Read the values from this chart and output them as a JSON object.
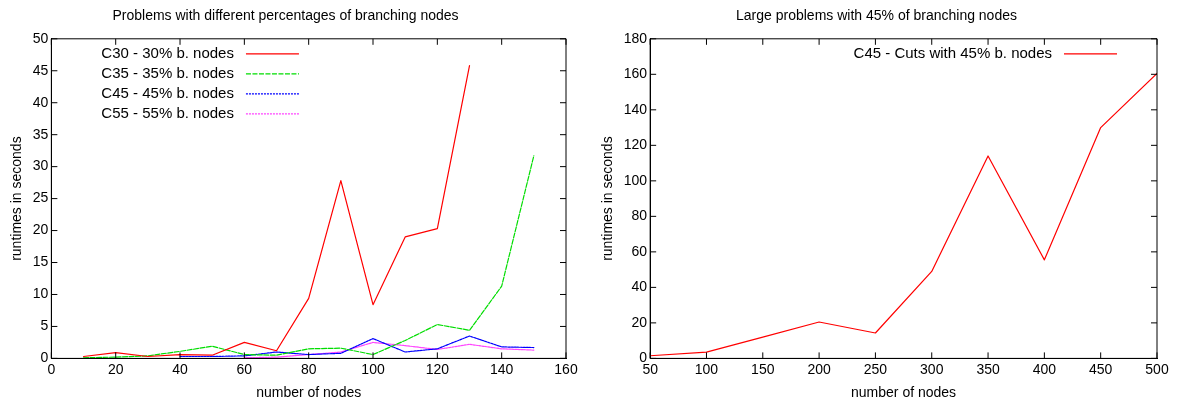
{
  "chart_data": [
    {
      "type": "line",
      "title": "Problems with different percentages of branching nodes",
      "xlabel": "number of nodes",
      "ylabel": "runtimes in seconds",
      "xlim": [
        0,
        160
      ],
      "xticks": [
        0,
        20,
        40,
        60,
        80,
        100,
        120,
        140,
        160
      ],
      "ylim": [
        0,
        50
      ],
      "yticks": [
        0,
        5,
        10,
        15,
        20,
        25,
        30,
        35,
        40,
        45,
        50
      ],
      "grid": false,
      "legend": "top left",
      "marker": "none",
      "series": [
        {
          "name": "C30 - 30% b. nodes",
          "color": "#ff0000",
          "line_style": "solid",
          "x": [
            10,
            20,
            30,
            40,
            50,
            60,
            70,
            80,
            90,
            100,
            110,
            120,
            130
          ],
          "values": [
            0.3,
            0.9,
            0.3,
            0.6,
            0.5,
            2.5,
            1.2,
            9.4,
            27.8,
            8.4,
            19,
            20.3,
            45.8
          ]
        },
        {
          "name": "C35 - 35% b. nodes",
          "color": "#00dd00",
          "line_style": "dashed",
          "x": [
            10,
            20,
            30,
            40,
            50,
            60,
            70,
            80,
            90,
            100,
            110,
            120,
            130,
            140,
            150
          ],
          "values": [
            0.1,
            0.2,
            0.4,
            1.1,
            1.9,
            0.6,
            0.5,
            1.5,
            1.6,
            0.6,
            2.8,
            5.3,
            4.4,
            11.3,
            31.7
          ]
        },
        {
          "name": "C45 - 45% b. nodes",
          "color": "#0000ff",
          "line_style": "dotted",
          "x": [
            40,
            50,
            60,
            70,
            80,
            90,
            100,
            110,
            120,
            130,
            140,
            150
          ],
          "values": [
            0.3,
            0.3,
            0.4,
            1.0,
            0.6,
            0.8,
            3.1,
            1.0,
            1.5,
            3.5,
            1.8,
            1.7
          ]
        },
        {
          "name": "C55 - 55% b. nodes",
          "color": "#ff44ff",
          "line_style": "dotted",
          "x": [
            60,
            70,
            80,
            90,
            100,
            110,
            120,
            130,
            140,
            150
          ],
          "values": [
            0.1,
            0.2,
            0.6,
            1.0,
            2.5,
            2.0,
            1.4,
            2.2,
            1.5,
            1.3
          ]
        }
      ]
    },
    {
      "type": "line",
      "title": "Large problems with 45% of branching nodes",
      "xlabel": "number of nodes",
      "ylabel": "runtimes in seconds",
      "xlim": [
        50,
        500
      ],
      "xticks": [
        50,
        100,
        150,
        200,
        250,
        300,
        350,
        400,
        450,
        500
      ],
      "ylim": [
        0,
        180
      ],
      "yticks": [
        0,
        20,
        40,
        60,
        80,
        100,
        120,
        140,
        160,
        180
      ],
      "grid": false,
      "legend": "top right",
      "marker": "none",
      "series": [
        {
          "name": "C45 - Cuts with 45% b. nodes",
          "color": "#ff0000",
          "line_style": "solid",
          "x": [
            50,
            100,
            150,
            200,
            250,
            300,
            350,
            400,
            450,
            500
          ],
          "values": [
            1.5,
            3.5,
            12,
            20.5,
            14.3,
            49,
            114,
            55.5,
            130,
            160.5
          ]
        }
      ]
    }
  ]
}
